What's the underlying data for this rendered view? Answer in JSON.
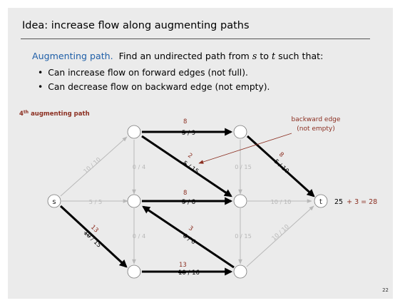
{
  "slide": {
    "title": "Idea: increase flow along augmenting paths",
    "intro": {
      "term": "Augmenting path.",
      "text_a": "Find an undirected path from",
      "var_s": "s",
      "text_b": "to",
      "var_t": "t",
      "text_c": "such that:"
    },
    "bullets": [
      "Can increase flow on forward edges (not full).",
      "Can decrease flow on backward edge (not empty)."
    ],
    "path_label_main": "4",
    "path_label_sup": "th",
    "path_label_rest": "augmenting path",
    "callout_line1": "backward edge",
    "callout_line2": "(not empty)",
    "total_base": "25",
    "total_add": "+ 3 = 28",
    "page_number": "22"
  },
  "graph": {
    "nodes": {
      "s": {
        "label": "s"
      },
      "t": {
        "label": "t"
      }
    },
    "edges": {
      "s_a": {
        "label": "10 / 10"
      },
      "s_b": {
        "label": "5 / 5"
      },
      "s_c": {
        "old": "10",
        "rest": " / 15",
        "new": "13"
      },
      "a_d": {
        "old": "5",
        "rest": " / 9",
        "new": "8"
      },
      "a_b": {
        "label": "0 / 4"
      },
      "a_e": {
        "old": "5",
        "rest": " / 15",
        "new": "2"
      },
      "b_e": {
        "old": "5",
        "rest": " / 8",
        "new": "8"
      },
      "b_c": {
        "label": "0 / 4"
      },
      "f_b": {
        "old": "0",
        "rest": " / 6",
        "new": "3"
      },
      "c_f": {
        "old": "10",
        "rest": " / 16",
        "new": "13"
      },
      "d_t": {
        "old": "5",
        "rest": " / 10",
        "new": "8"
      },
      "d_e": {
        "label": "0 / 15"
      },
      "e_t": {
        "label": "10 / 10"
      },
      "e_f": {
        "label": "0 / 15"
      },
      "f_t": {
        "label": "10 / 10"
      }
    }
  },
  "colors": {
    "accent_blue": "#1f5fa8",
    "annotation_red": "#8b2e20",
    "inactive_gray": "#b8b8b8",
    "path_black": "#000000"
  }
}
